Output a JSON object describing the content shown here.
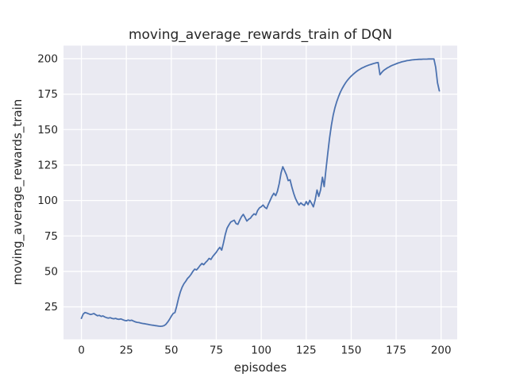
{
  "chart_data": {
    "type": "line",
    "title": "moving_average_rewards_train of DQN",
    "xlabel": "episodes",
    "ylabel": "moving_average_rewards_train",
    "xticks": [
      0,
      25,
      50,
      75,
      100,
      125,
      150,
      175,
      200
    ],
    "yticks": [
      25,
      50,
      75,
      100,
      125,
      150,
      175,
      200
    ],
    "xlim": [
      -9.95,
      208.95
    ],
    "ylim": [
      2.1,
      209.2
    ],
    "grid": true,
    "legend": "none",
    "style": "seaborn-darkgrid",
    "colors": {
      "figure_background": "#ffffff",
      "axes_background": "#eaeaf2",
      "grid": "#ffffff",
      "line": "#4c72b0",
      "text": "#262626"
    },
    "series": [
      {
        "name": "moving_average_rewards_train",
        "x_start": 0,
        "x_step": 1,
        "y": [
          16.9,
          19.9,
          21.0,
          20.6,
          20.1,
          19.6,
          19.9,
          20.3,
          19.4,
          18.7,
          19.0,
          18.3,
          18.6,
          17.9,
          17.4,
          17.1,
          17.4,
          16.9,
          16.6,
          16.9,
          16.4,
          16.2,
          16.5,
          15.9,
          15.5,
          15.2,
          15.7,
          15.3,
          15.6,
          14.9,
          14.4,
          14.1,
          13.9,
          13.6,
          13.3,
          13.1,
          12.9,
          12.7,
          12.4,
          12.2,
          12.0,
          11.8,
          11.6,
          11.4,
          11.3,
          11.4,
          11.8,
          12.7,
          14.3,
          16.2,
          18.4,
          20.3,
          21.0,
          25.5,
          31.0,
          35.5,
          38.8,
          41.3,
          43.0,
          45.0,
          46.3,
          48.0,
          50.0,
          51.6,
          51.0,
          52.5,
          54.2,
          55.6,
          54.7,
          56.2,
          57.5,
          59.2,
          58.4,
          60.5,
          62.0,
          63.5,
          65.5,
          67.0,
          65.0,
          70.0,
          76.0,
          80.5,
          82.7,
          84.8,
          85.5,
          86.1,
          83.7,
          83.2,
          86.0,
          88.5,
          90.2,
          88.0,
          85.5,
          86.8,
          87.5,
          89.3,
          90.6,
          89.8,
          93.0,
          94.8,
          95.6,
          96.8,
          95.2,
          94.3,
          97.5,
          100.3,
          103.0,
          105.1,
          103.4,
          106.5,
          112.0,
          119.5,
          123.8,
          121.0,
          118.0,
          114.0,
          114.6,
          109.5,
          105.2,
          101.5,
          98.8,
          96.8,
          98.3,
          97.2,
          96.5,
          99.2,
          97.1,
          100.1,
          97.9,
          95.5,
          100.5,
          107.4,
          102.9,
          107.5,
          116.4,
          109.8,
          122.0,
          133.5,
          144.0,
          153.0,
          160.3,
          165.5,
          169.8,
          173.4,
          176.4,
          179.0,
          181.2,
          183.2,
          184.9,
          186.4,
          187.7,
          188.9,
          190.0,
          191.0,
          191.9,
          192.7,
          193.4,
          194.0,
          194.6,
          195.1,
          195.6,
          196.0,
          196.4,
          196.8,
          197.1,
          197.3,
          188.7,
          190.3,
          191.6,
          192.6,
          193.4,
          194.1,
          194.8,
          195.4,
          195.9,
          196.4,
          196.9,
          197.3,
          197.7,
          198.0,
          198.3,
          198.6,
          198.8,
          199.0,
          199.2,
          199.3,
          199.4,
          199.5,
          199.6,
          199.6,
          199.7,
          199.7,
          199.7,
          199.8,
          199.8,
          199.8,
          199.8,
          194.0,
          183.0,
          177.3
        ]
      }
    ]
  }
}
